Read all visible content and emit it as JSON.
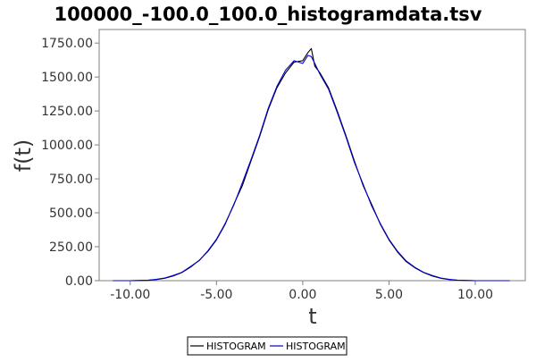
{
  "chart_data": {
    "type": "line",
    "title": "100000_-100.0_100.0_histogramdata.tsv",
    "xlabel": "t",
    "ylabel": "f(t)",
    "xlim": [
      -11.8,
      12.9
    ],
    "ylim": [
      0,
      1850
    ],
    "x_ticks": [
      -10,
      -5,
      0,
      5,
      10
    ],
    "x_tick_labels": [
      "-10.00",
      "-5.00",
      "0.00",
      "5.00",
      "10.00"
    ],
    "y_ticks": [
      0,
      250,
      500,
      750,
      1000,
      1250,
      1500,
      1750
    ],
    "y_tick_labels": [
      "0.00",
      "250.00",
      "500.00",
      "750.00",
      "1000.00",
      "1250.00",
      "1500.00",
      "1750.00"
    ],
    "grid": false,
    "legend_position": "bottom-center",
    "series": [
      {
        "name": "HISTOGRAM",
        "color": "#000000",
        "x": [
          -11,
          -10,
          -9,
          -8.5,
          -8,
          -7.5,
          -7,
          -6.5,
          -6,
          -5.5,
          -5,
          -4.5,
          -4,
          -3.5,
          -3,
          -2.5,
          -2,
          -1.5,
          -1,
          -0.5,
          0,
          0.3,
          0.5,
          0.7,
          1,
          1.5,
          2,
          2.5,
          3,
          3.5,
          4,
          4.5,
          5,
          5.5,
          6,
          6.5,
          7,
          7.5,
          8,
          8.5,
          9,
          10,
          11,
          12
        ],
        "y": [
          0,
          0,
          2,
          8,
          18,
          35,
          60,
          100,
          150,
          215,
          300,
          415,
          560,
          700,
          880,
          1060,
          1260,
          1420,
          1530,
          1610,
          1620,
          1680,
          1710,
          1580,
          1530,
          1420,
          1250,
          1070,
          880,
          700,
          560,
          415,
          300,
          210,
          140,
          95,
          60,
          35,
          18,
          8,
          3,
          0,
          0,
          0
        ]
      },
      {
        "name": "HISTOGRAM",
        "color": "#0000cc",
        "x": [
          -11,
          -10,
          -9,
          -8.5,
          -8,
          -7.5,
          -7,
          -6.5,
          -6,
          -5.5,
          -5,
          -4.5,
          -4,
          -3.5,
          -3,
          -2.5,
          -2,
          -1.5,
          -1,
          -0.5,
          0,
          0.3,
          0.5,
          0.7,
          1,
          1.5,
          2,
          2.5,
          3,
          3.5,
          4,
          4.5,
          5,
          5.5,
          6,
          6.5,
          7,
          7.5,
          8,
          8.5,
          9,
          10,
          11,
          12
        ],
        "y": [
          0,
          0,
          3,
          9,
          20,
          38,
          62,
          105,
          148,
          220,
          305,
          420,
          555,
          720,
          890,
          1070,
          1270,
          1430,
          1550,
          1620,
          1600,
          1660,
          1650,
          1600,
          1520,
          1410,
          1240,
          1060,
          870,
          710,
          550,
          420,
          305,
          215,
          145,
          98,
          62,
          38,
          20,
          9,
          3,
          0,
          0,
          0
        ]
      }
    ]
  }
}
